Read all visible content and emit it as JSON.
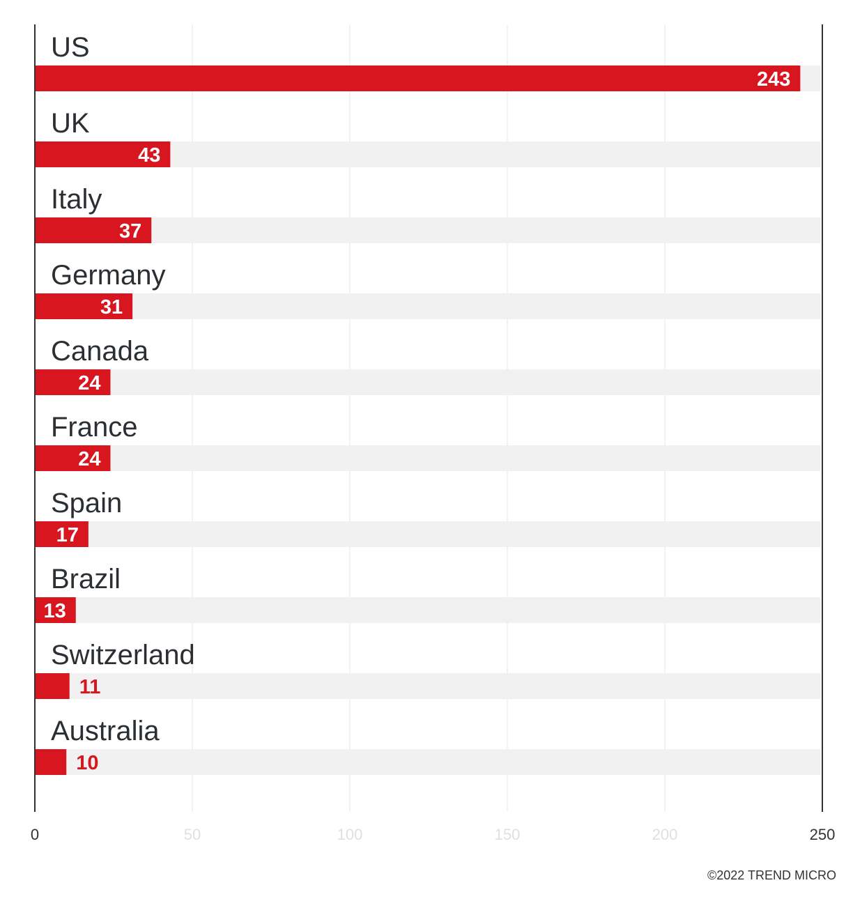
{
  "chart_data": {
    "type": "bar",
    "orientation": "horizontal",
    "categories": [
      "US",
      "UK",
      "Italy",
      "Germany",
      "Canada",
      "France",
      "Spain",
      "Brazil",
      "Switzerland",
      "Australia"
    ],
    "values": [
      243,
      43,
      37,
      31,
      24,
      24,
      17,
      13,
      11,
      10
    ],
    "xlim": [
      0,
      250
    ],
    "xticks": [
      0,
      50,
      100,
      150,
      200,
      250
    ],
    "grid": true,
    "title": "",
    "xlabel": "",
    "ylabel": "",
    "colors": {
      "bar": "#d7161f",
      "track": "#f1f1f1",
      "grid": "#e6e6e6",
      "axis": "#333333",
      "faint_tick": "#e0e0e0"
    }
  },
  "credit": "©2022 TREND MICRO"
}
